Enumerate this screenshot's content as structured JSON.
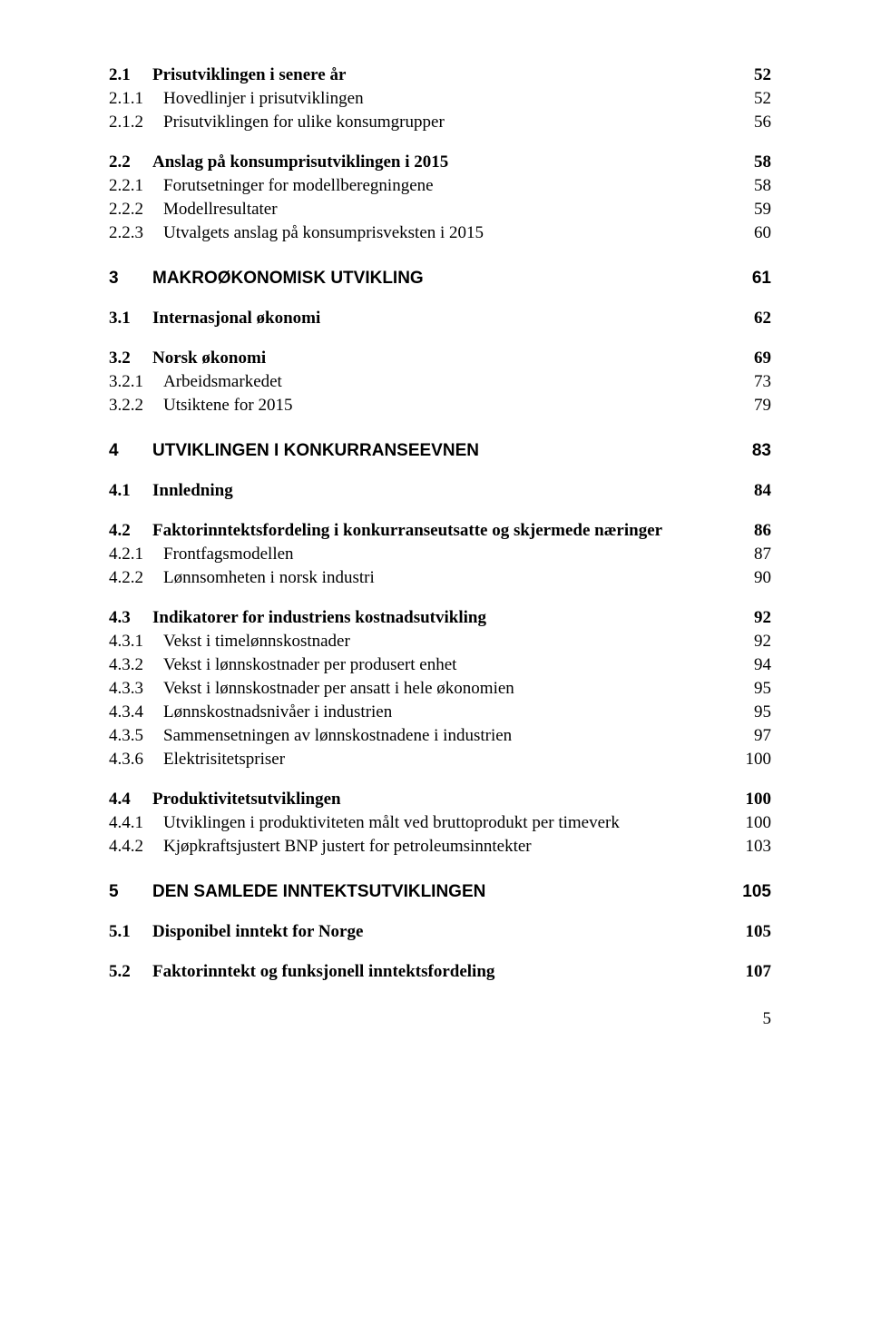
{
  "toc": [
    {
      "num": "2.1",
      "label": "Prisutviklingen i senere år",
      "page": "52",
      "cls": "lvl1-bold"
    },
    {
      "num": "2.1.1",
      "label": "Hovedlinjer i prisutviklingen",
      "page": "52",
      "cls": "lvl2"
    },
    {
      "num": "2.1.2",
      "label": "Prisutviklingen for ulike konsumgrupper",
      "page": "56",
      "cls": "lvl2"
    },
    {
      "num": "2.2",
      "label": "Anslag på konsumprisutviklingen i 2015",
      "page": "58",
      "cls": "lvl1-bold"
    },
    {
      "num": "2.2.1",
      "label": "Forutsetninger for modellberegningene",
      "page": "58",
      "cls": "lvl2"
    },
    {
      "num": "2.2.2",
      "label": "Modellresultater",
      "page": "59",
      "cls": "lvl2"
    },
    {
      "num": "2.2.3",
      "label": "Utvalgets anslag på konsumprisveksten i 2015",
      "page": "60",
      "cls": "lvl2"
    },
    {
      "num": "3",
      "label": "MAKROØKONOMISK UTVIKLING",
      "page": "61",
      "cls": "lvl1-arial"
    },
    {
      "num": "3.1",
      "label": "Internasjonal økonomi",
      "page": "62",
      "cls": "lvl1-bold"
    },
    {
      "num": "3.2",
      "label": "Norsk økonomi",
      "page": "69",
      "cls": "lvl1-bold"
    },
    {
      "num": "3.2.1",
      "label": "Arbeidsmarkedet",
      "page": "73",
      "cls": "lvl2"
    },
    {
      "num": "3.2.2",
      "label": "Utsiktene for 2015",
      "page": "79",
      "cls": "lvl2"
    },
    {
      "num": "4",
      "label": "UTVIKLINGEN I KONKURRANSEEVNEN",
      "page": "83",
      "cls": "lvl1-arial"
    },
    {
      "num": "4.1",
      "label": "Innledning",
      "page": "84",
      "cls": "lvl1-bold"
    },
    {
      "num": "4.2",
      "label": "Faktorinntektsfordeling i konkurranseutsatte og skjermede næringer",
      "page": "86",
      "cls": "lvl1-bold"
    },
    {
      "num": "4.2.1",
      "label": "Frontfagsmodellen",
      "page": "87",
      "cls": "lvl2"
    },
    {
      "num": "4.2.2",
      "label": "Lønnsomheten i norsk industri",
      "page": "90",
      "cls": "lvl2"
    },
    {
      "num": "4.3",
      "label": "Indikatorer for industriens kostnadsutvikling",
      "page": "92",
      "cls": "lvl1-bold"
    },
    {
      "num": "4.3.1",
      "label": "Vekst i timelønnskostnader",
      "page": "92",
      "cls": "lvl2"
    },
    {
      "num": "4.3.2",
      "label": "Vekst i lønnskostnader per produsert enhet",
      "page": "94",
      "cls": "lvl2"
    },
    {
      "num": "4.3.3",
      "label": "Vekst i lønnskostnader per ansatt i hele økonomien",
      "page": "95",
      "cls": "lvl2"
    },
    {
      "num": "4.3.4",
      "label": "Lønnskostnadsnivåer i industrien",
      "page": "95",
      "cls": "lvl2"
    },
    {
      "num": "4.3.5",
      "label": "Sammensetningen av lønnskostnadene i industrien",
      "page": "97",
      "cls": "lvl2"
    },
    {
      "num": "4.3.6",
      "label": "Elektrisitetspriser",
      "page": "100",
      "cls": "lvl2"
    },
    {
      "num": "4.4",
      "label": "Produktivitetsutviklingen",
      "page": "100",
      "cls": "lvl1-bold"
    },
    {
      "num": "4.4.1",
      "label": "Utviklingen i produktiviteten målt ved bruttoprodukt per timeverk",
      "page": "100",
      "cls": "lvl2"
    },
    {
      "num": "4.4.2",
      "label": "Kjøpkraftsjustert BNP justert for petroleumsinntekter",
      "page": "103",
      "cls": "lvl2"
    },
    {
      "num": "5",
      "label": "DEN SAMLEDE INNTEKTSUTVIKLINGEN",
      "page": "105",
      "cls": "lvl1-arial"
    },
    {
      "num": "5.1",
      "label": "Disponibel inntekt for Norge",
      "page": "105",
      "cls": "lvl1-bold"
    },
    {
      "num": "5.2",
      "label": "Faktorinntekt og funksjonell inntektsfordeling",
      "page": "107",
      "cls": "lvl1-bold"
    }
  ],
  "footer_page_number": "5"
}
